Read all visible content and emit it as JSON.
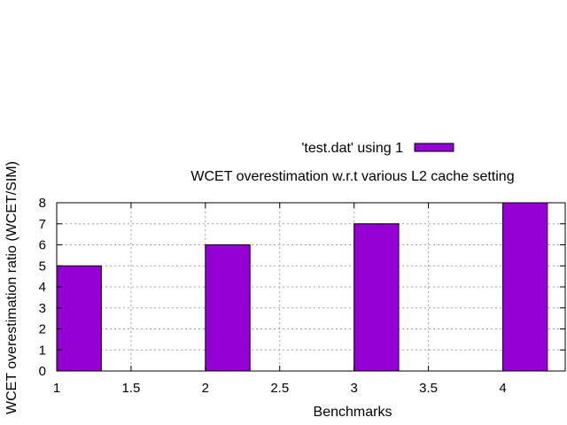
{
  "chart_data": {
    "type": "bar",
    "title": "WCET overestimation w.r.t various L2 cache setting",
    "xlabel": "Benchmarks",
    "ylabel": "WCET overestimation ratio (WCET/SIM)",
    "xlim": [
      1,
      4.42
    ],
    "ylim": [
      0,
      8
    ],
    "x_ticks": [
      1,
      1.5,
      2,
      2.5,
      3,
      3.5,
      4
    ],
    "x_tick_labels": [
      "1",
      "1.5",
      "2",
      "2.5",
      "3",
      "3.5",
      "4"
    ],
    "y_ticks": [
      0,
      1,
      2,
      3,
      4,
      5,
      6,
      7,
      8
    ],
    "y_tick_labels": [
      "0",
      "1",
      "2",
      "3",
      "4",
      "5",
      "6",
      "7",
      "8"
    ],
    "grid": true,
    "legend_position": "top-center",
    "series": [
      {
        "name": "'test.dat' using 1",
        "color": "#9400d3",
        "bars": [
          {
            "x_start": 1,
            "x_end": 1.3,
            "value": 5
          },
          {
            "x_start": 2,
            "x_end": 2.3,
            "value": 6
          },
          {
            "x_start": 3,
            "x_end": 3.3,
            "value": 7
          },
          {
            "x_start": 4,
            "x_end": 4.3,
            "value": 8
          }
        ]
      }
    ]
  }
}
